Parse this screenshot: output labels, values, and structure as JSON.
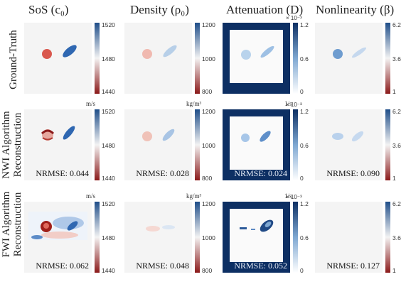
{
  "columns": [
    {
      "title": "SoS (c₀)",
      "colorbar": {
        "ticks": [
          "1520",
          "1480",
          "1440"
        ],
        "unit": "m/s",
        "colors": [
          "#1f4e89",
          "#f3f3f3",
          "#8b1a1a"
        ]
      }
    },
    {
      "title": "Density (ρ₀)",
      "colorbar": {
        "ticks": [
          "1200",
          "1000",
          "800"
        ],
        "unit": "kg/m³",
        "colors": [
          "#1f4e89",
          "#f3f3f3",
          "#8b1a1a"
        ]
      }
    },
    {
      "title": "Attenuation (D)",
      "colorbar": {
        "ticks": [
          "1.2",
          "0.6",
          "0"
        ],
        "unit": "1/s",
        "exponent": "× 10⁻³",
        "colors": [
          "#0d2f63",
          "#7fa8d2",
          "#ffffff"
        ]
      }
    },
    {
      "title": "Nonlinearity (β)",
      "colorbar": {
        "ticks": [
          "6.2",
          "3.6",
          "1"
        ],
        "unit": "",
        "colors": [
          "#1f4e89",
          "#f3f3f3",
          "#8b1a1a"
        ]
      }
    }
  ],
  "rows": [
    {
      "label": [
        "Ground-Truth"
      ],
      "nrmse": [
        "",
        "",
        "",
        ""
      ]
    },
    {
      "label": [
        "NWI Algorithm",
        "Reconstruction"
      ],
      "nrmse": [
        "NRMSE: 0.044",
        "NRMSE: 0.028",
        "NRMSE: 0.024",
        "NRMSE: 0.090"
      ]
    },
    {
      "label": [
        "FWI Algorithm",
        "Reconstruction"
      ],
      "nrmse": [
        "NRMSE: 0.062",
        "NRMSE: 0.048",
        "NRMSE: 0.052",
        "NRMSE: 0.127"
      ]
    }
  ]
}
